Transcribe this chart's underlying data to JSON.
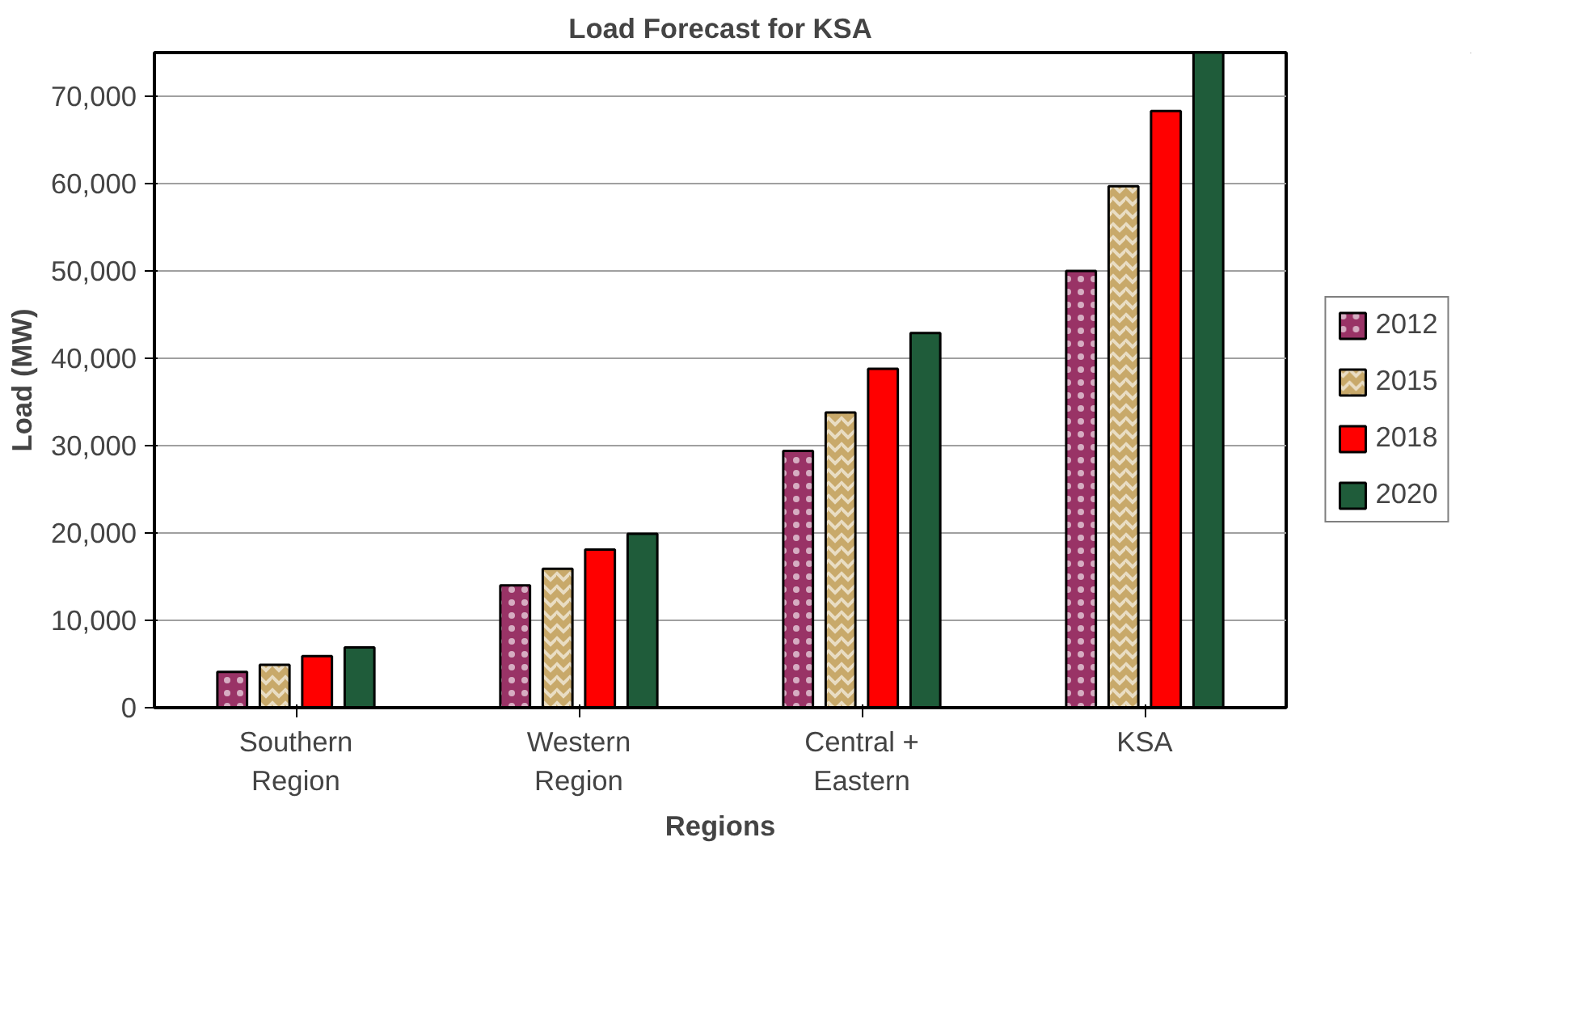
{
  "chart_data": {
    "type": "bar",
    "title": "Load Forecast for KSA",
    "xlabel": "Regions",
    "ylabel": "Load (MW)",
    "categories": [
      "Southern Region",
      "Western Region",
      "Central + Eastern",
      "KSA"
    ],
    "series": [
      {
        "name": "2012",
        "color": "#993366",
        "values": [
          4100,
          14000,
          29400,
          50000
        ]
      },
      {
        "name": "2015",
        "color": "#c8a96a",
        "values": [
          4900,
          15900,
          33800,
          59700
        ]
      },
      {
        "name": "2018",
        "color": "#ff0000",
        "values": [
          5900,
          18100,
          38800,
          68300
        ]
      },
      {
        "name": "2020",
        "color": "#1f5c3a",
        "values": [
          6900,
          19900,
          42900,
          75000
        ]
      }
    ],
    "ylim": [
      0,
      75000
    ],
    "yticks": [
      {
        "value": 0,
        "label": "0"
      },
      {
        "value": 10000,
        "label": "10,000"
      },
      {
        "value": 20000,
        "label": "20,000"
      },
      {
        "value": 30000,
        "label": "30,000"
      },
      {
        "value": 40000,
        "label": "40,000"
      },
      {
        "value": 50000,
        "label": "50,000"
      },
      {
        "value": 60000,
        "label": "60,000"
      },
      {
        "value": 70000,
        "label": "70,000"
      }
    ],
    "grid": "y",
    "legend": "right"
  }
}
